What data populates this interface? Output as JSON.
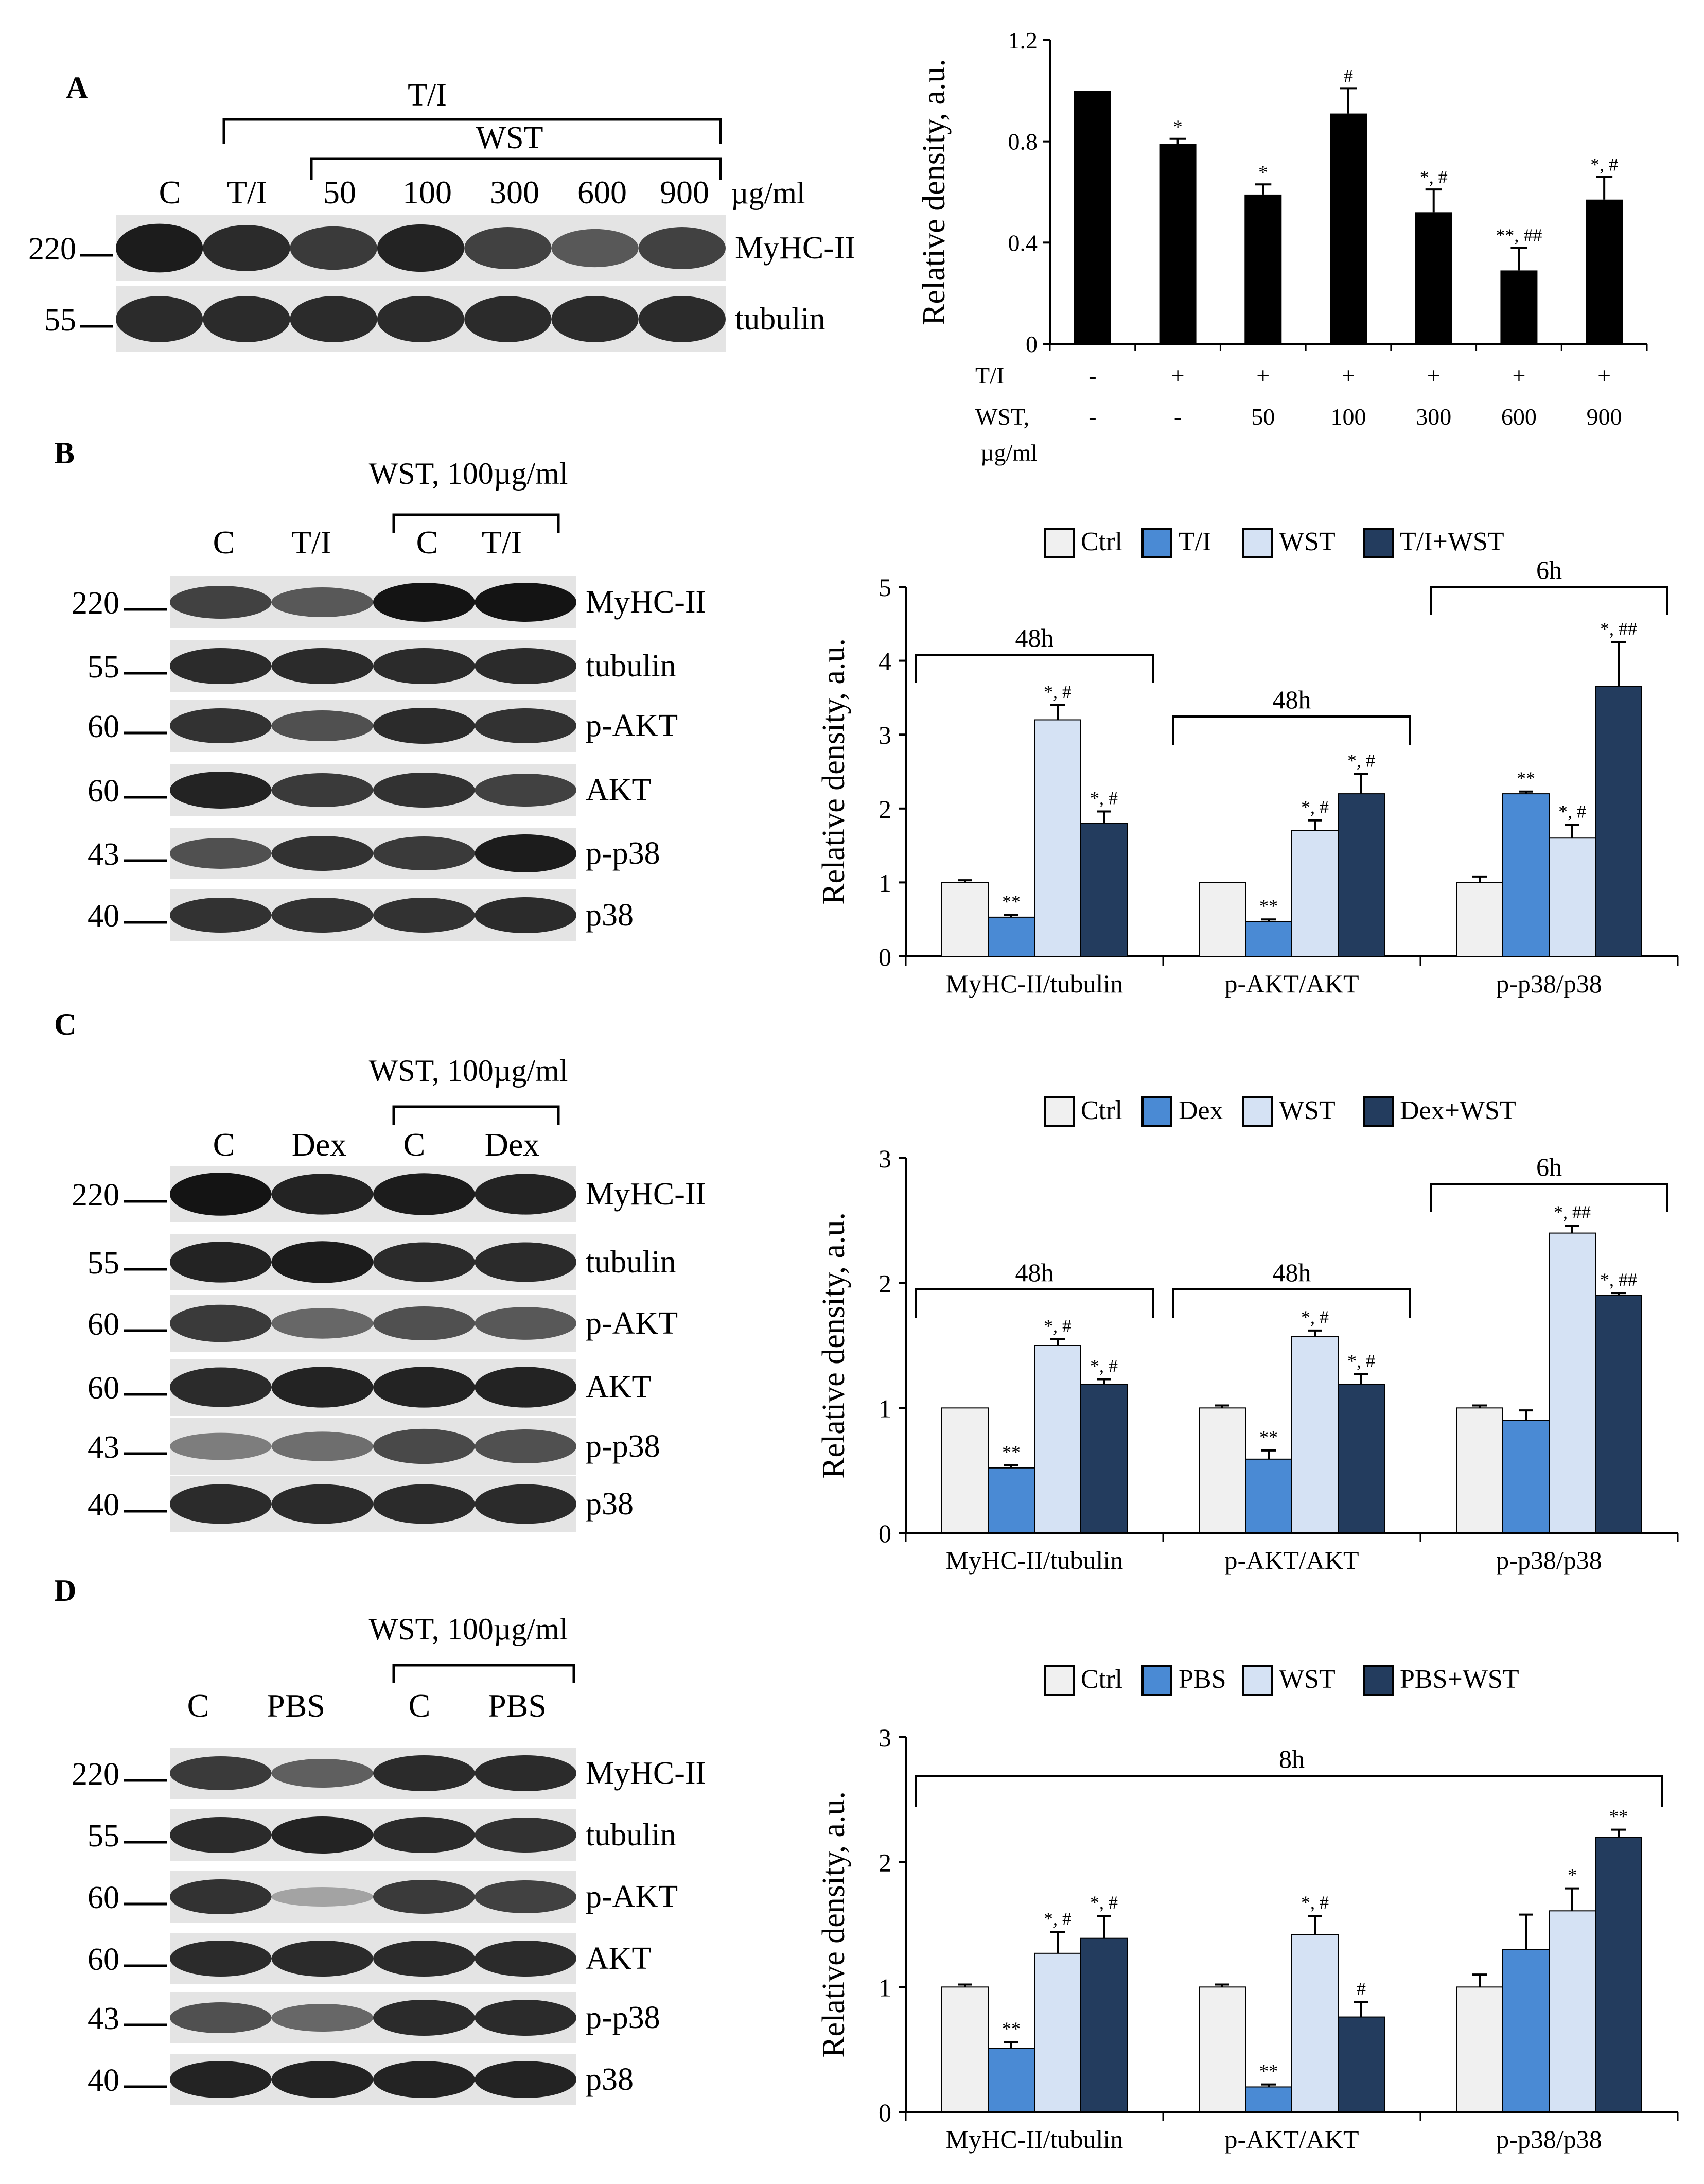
{
  "colors": {
    "ctrl": "#f0f0f0",
    "treat": "#4a8ad4",
    "wst": "#d5e2f4",
    "combo": "#233c5e",
    "barA": "#000000"
  },
  "panels": {
    "A": {
      "letter": "A",
      "blot": {
        "outer_label": "T/I",
        "inner_label": "WST",
        "lanes": [
          "C",
          "T/I",
          "50",
          "100",
          "300",
          "600",
          "900"
        ],
        "unit": "µg/ml",
        "markers": [
          "220",
          "55"
        ],
        "bands": [
          "MyHC-II",
          "tubulin"
        ]
      }
    },
    "B": {
      "letter": "B",
      "blot": {
        "bracket_label": "WST, 100µg/ml",
        "lanes": [
          "C",
          "T/I",
          "C",
          "T/I"
        ],
        "markers": [
          "220",
          "55",
          "60",
          "60",
          "43",
          "40"
        ],
        "bands": [
          "MyHC-II",
          "tubulin",
          "p-AKT",
          "AKT",
          "p-p38",
          "p38"
        ]
      }
    },
    "C": {
      "letter": "C",
      "blot": {
        "bracket_label": "WST, 100µg/ml",
        "lanes": [
          "C",
          "Dex",
          "C",
          "Dex"
        ],
        "markers": [
          "220",
          "55",
          "60",
          "60",
          "43",
          "40"
        ],
        "bands": [
          "MyHC-II",
          "tubulin",
          "p-AKT",
          "AKT",
          "p-p38",
          "p38"
        ]
      }
    },
    "D": {
      "letter": "D",
      "blot": {
        "bracket_label": "WST, 100µg/ml",
        "lanes": [
          "C",
          "PBS",
          "C",
          "PBS"
        ],
        "markers": [
          "220",
          "55",
          "60",
          "60",
          "43",
          "40"
        ],
        "bands": [
          "MyHC-II",
          "tubulin",
          "p-AKT",
          "AKT",
          "p-p38",
          "p38"
        ]
      }
    }
  },
  "chart_data": [
    {
      "id": "A",
      "type": "bar",
      "ylabel": "Relative density, a.u.",
      "ylim": [
        0,
        1.2
      ],
      "yticks": [
        "0",
        "0.4",
        "0.8",
        "1.2"
      ],
      "row_labels": [
        "T/I",
        "WST,"
      ],
      "row_label_unit": "µg/ml",
      "rows": [
        [
          "-",
          "+",
          "+",
          "+",
          "+",
          "+",
          "+"
        ],
        [
          "-",
          "-",
          "50",
          "100",
          "300",
          "600",
          "900"
        ]
      ],
      "values": [
        1.0,
        0.79,
        0.59,
        0.91,
        0.52,
        0.29,
        0.57
      ],
      "errors": [
        0,
        0.02,
        0.04,
        0.1,
        0.09,
        0.09,
        0.09
      ],
      "annotations": [
        "",
        "*",
        "*",
        "#",
        "*, #",
        "**, ##",
        "*, #"
      ]
    },
    {
      "id": "B",
      "type": "bar",
      "ylabel": "Relative density, a.u.",
      "ylim": [
        0,
        5
      ],
      "yticks": [
        "0",
        "1",
        "2",
        "3",
        "4",
        "5"
      ],
      "legend": [
        "Ctrl",
        "T/I",
        "WST",
        "T/I+WST"
      ],
      "categories": [
        "MyHC-II/tubulin",
        "p-AKT/AKT",
        "p-p38/p38"
      ],
      "brackets": [
        "48h",
        "48h",
        "6h"
      ],
      "series": [
        {
          "name": "Ctrl",
          "values": [
            1.0,
            1.0,
            1.0
          ],
          "errors": [
            0.03,
            0,
            0.08
          ],
          "annotations": [
            "",
            "",
            ""
          ]
        },
        {
          "name": "T/I",
          "values": [
            0.53,
            0.47,
            2.2
          ],
          "errors": [
            0.03,
            0.03,
            0.03
          ],
          "annotations": [
            "**",
            "**",
            "**"
          ]
        },
        {
          "name": "WST",
          "values": [
            3.2,
            1.7,
            1.6
          ],
          "errors": [
            0.2,
            0.14,
            0.18
          ],
          "annotations": [
            "*, #",
            "*, #",
            "*, #"
          ]
        },
        {
          "name": "T/I+WST",
          "values": [
            1.8,
            2.2,
            3.65
          ],
          "errors": [
            0.16,
            0.27,
            0.6
          ],
          "annotations": [
            "*, #",
            "*, #",
            "*, ##"
          ]
        }
      ]
    },
    {
      "id": "C",
      "type": "bar",
      "ylabel": "Relative density, a.u.",
      "ylim": [
        0,
        3
      ],
      "yticks": [
        "0",
        "1",
        "2",
        "3"
      ],
      "legend": [
        "Ctrl",
        "Dex",
        "WST",
        "Dex+WST"
      ],
      "categories": [
        "MyHC-II/tubulin",
        "p-AKT/AKT",
        "p-p38/p38"
      ],
      "brackets": [
        "48h",
        "48h",
        "6h"
      ],
      "series": [
        {
          "name": "Ctrl",
          "values": [
            1.0,
            1.0,
            1.0
          ],
          "errors": [
            0,
            0.02,
            0.02
          ],
          "annotations": [
            "",
            "",
            ""
          ]
        },
        {
          "name": "Dex",
          "values": [
            0.52,
            0.59,
            0.9
          ],
          "errors": [
            0.02,
            0.07,
            0.08
          ],
          "annotations": [
            "**",
            "**",
            ""
          ]
        },
        {
          "name": "WST",
          "values": [
            1.5,
            1.57,
            2.4
          ],
          "errors": [
            0.05,
            0.05,
            0.06
          ],
          "annotations": [
            "*, #",
            "*, #",
            "*, ##"
          ]
        },
        {
          "name": "Dex+WST",
          "values": [
            1.19,
            1.19,
            1.9
          ],
          "errors": [
            0.04,
            0.08,
            0.02
          ],
          "annotations": [
            "*, #",
            "*, #",
            "*, ##"
          ]
        }
      ]
    },
    {
      "id": "D",
      "type": "bar",
      "ylabel": "Relative density, a.u.",
      "ylim": [
        0,
        3
      ],
      "yticks": [
        "0",
        "1",
        "2",
        "3"
      ],
      "legend": [
        "Ctrl",
        "PBS",
        "WST",
        "PBS+WST"
      ],
      "categories": [
        "MyHC-II/tubulin",
        "p-AKT/AKT",
        "p-p38/p38"
      ],
      "brackets": [
        "8h"
      ],
      "series": [
        {
          "name": "Ctrl",
          "values": [
            1.0,
            1.0,
            1.0
          ],
          "errors": [
            0.02,
            0.02,
            0.1
          ],
          "annotations": [
            "",
            "",
            ""
          ]
        },
        {
          "name": "PBS",
          "values": [
            0.51,
            0.2,
            1.3
          ],
          "errors": [
            0.05,
            0.02,
            0.28
          ],
          "annotations": [
            "**",
            "**",
            ""
          ]
        },
        {
          "name": "WST",
          "values": [
            1.27,
            1.42,
            1.61
          ],
          "errors": [
            0.17,
            0.15,
            0.18
          ],
          "annotations": [
            "*, #",
            "*, #",
            "*"
          ]
        },
        {
          "name": "PBS+WST",
          "values": [
            1.39,
            0.76,
            2.2
          ],
          "errors": [
            0.18,
            0.12,
            0.06
          ],
          "annotations": [
            "*, #",
            "#",
            "**"
          ]
        }
      ]
    }
  ]
}
